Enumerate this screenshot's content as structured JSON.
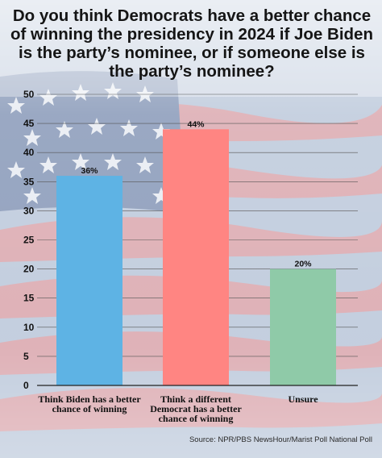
{
  "title": "Do you think Democrats have a better chance of winning the presidency in 2024 if Joe Biden is the party’s nominee, or if someone else is the party’s nominee?",
  "source": "Source: NPR/PBS NewsHour/Marist Poll National Poll",
  "chart_data": {
    "type": "bar",
    "categories": [
      [
        "Think Biden has a better",
        "chance of winning"
      ],
      [
        "Think a different",
        "Democrat has a better",
        "chance of winning"
      ],
      [
        "Unsure"
      ]
    ],
    "values": [
      36,
      44,
      20
    ],
    "data_labels": [
      "36%",
      "44%",
      "20%"
    ],
    "colors": [
      "#5eb3e4",
      "#ff8582",
      "#8fcaa8"
    ],
    "ylim": [
      0,
      50
    ],
    "yticks": [
      0,
      5,
      10,
      15,
      20,
      25,
      30,
      35,
      40,
      45,
      50
    ],
    "grid": true,
    "xlabel": "",
    "ylabel": ""
  }
}
